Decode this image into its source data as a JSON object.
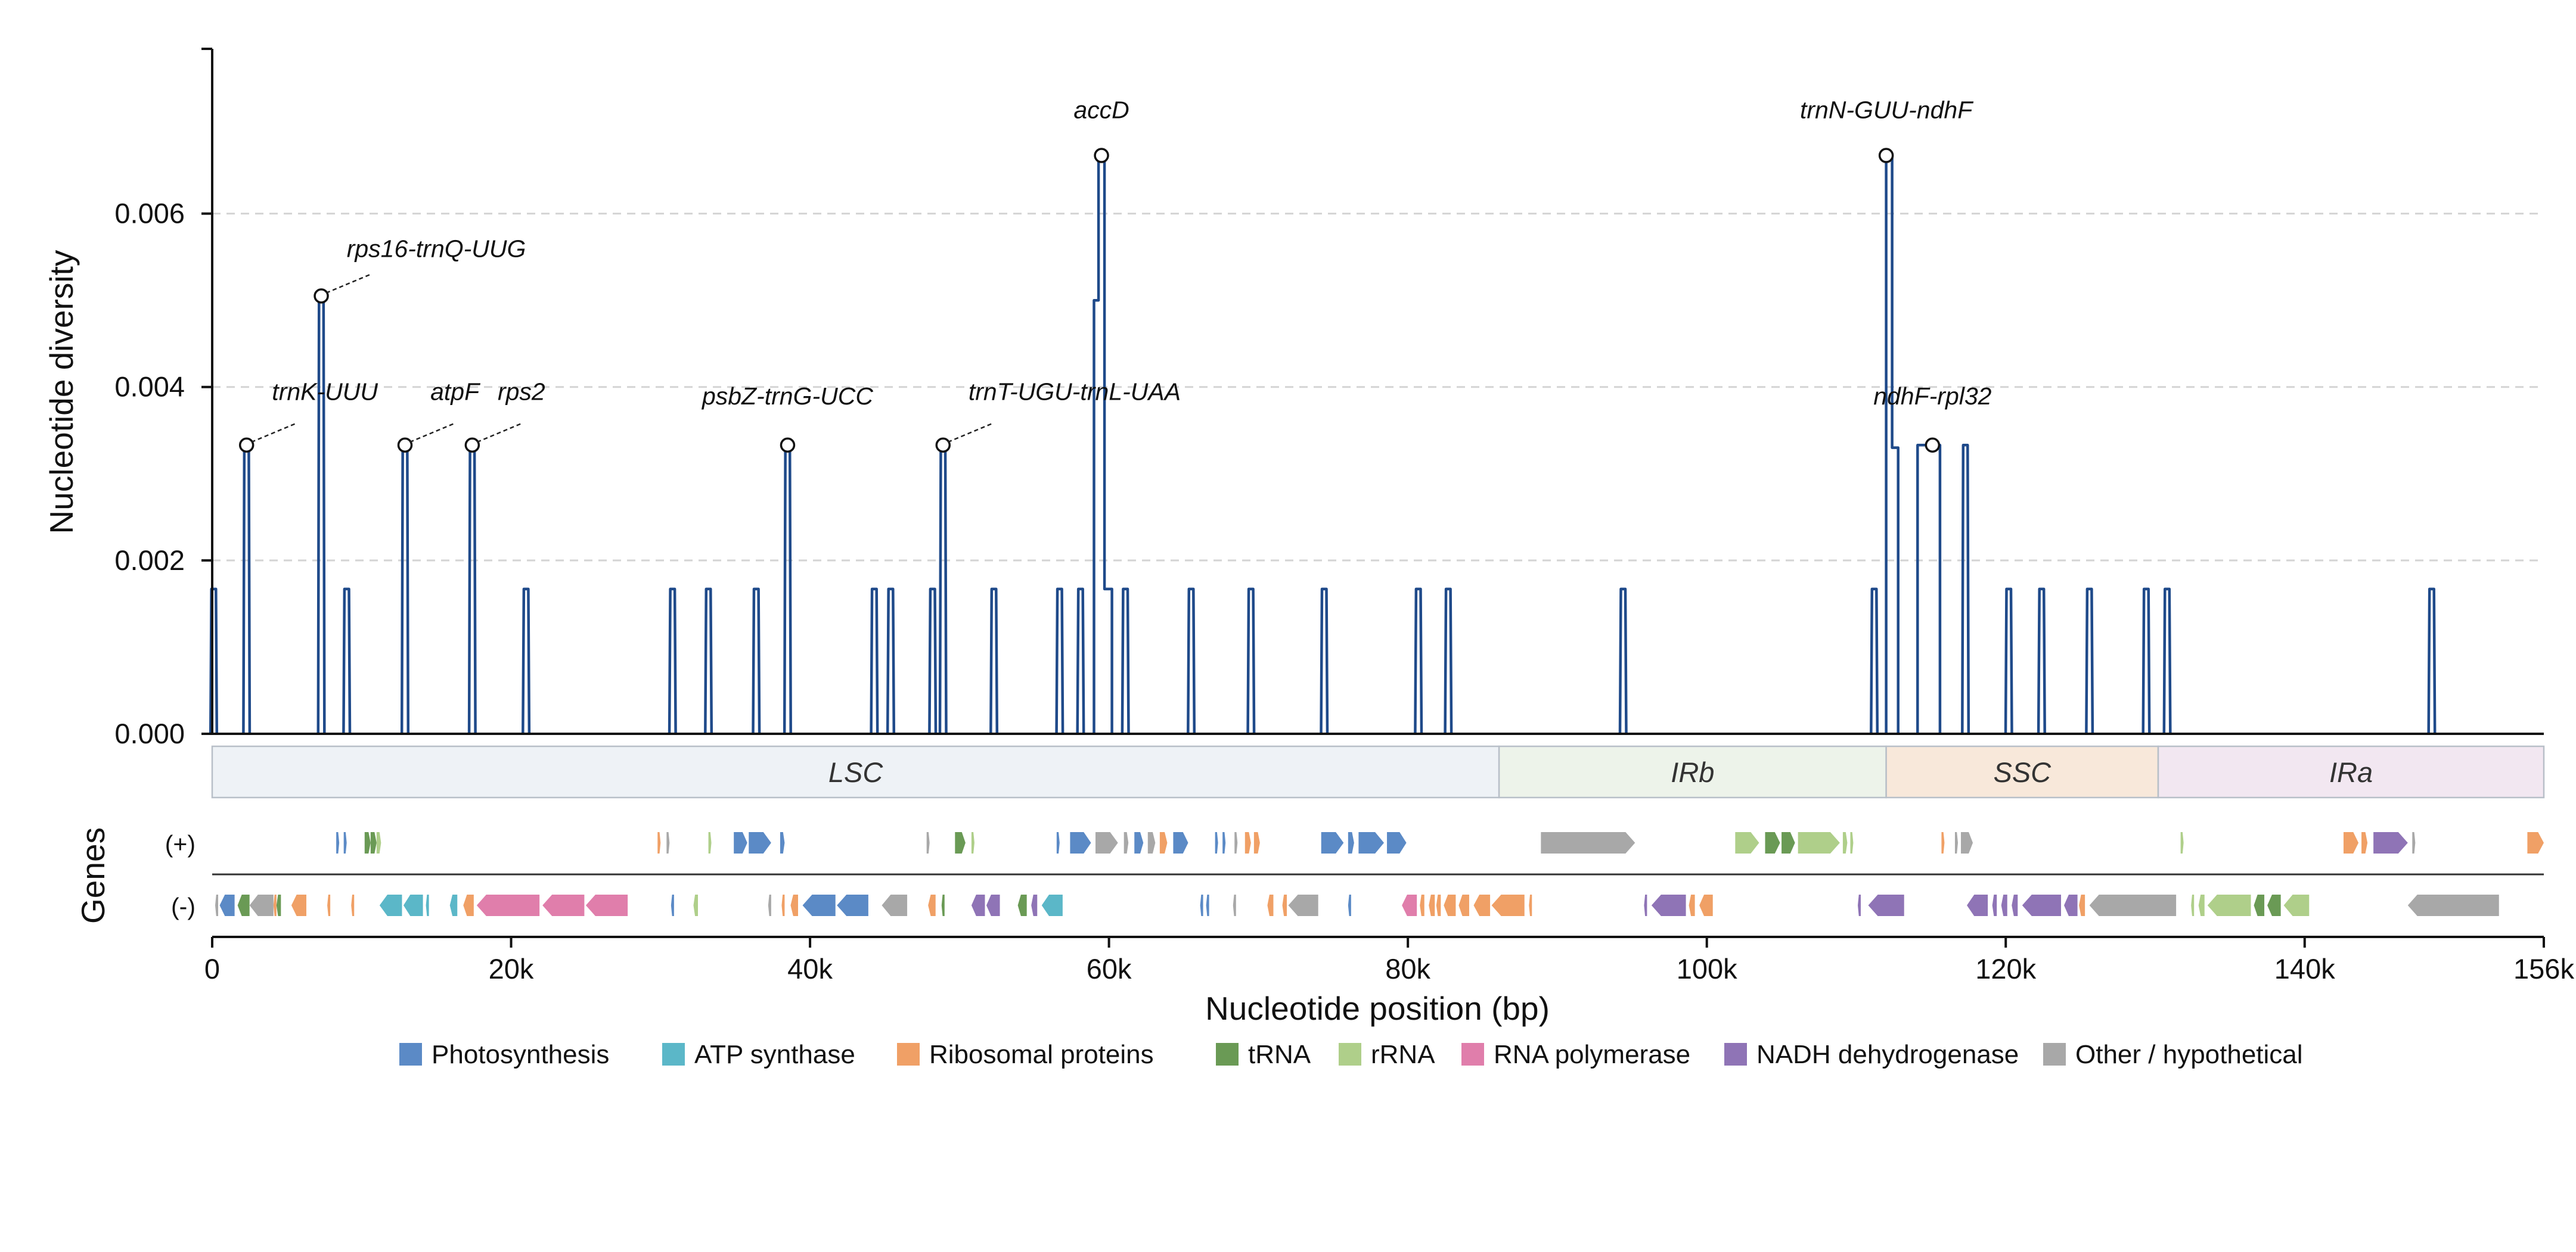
{
  "chart_data": {
    "type": "line",
    "xlabel": "Nucleotide position (bp)",
    "ylabel": "Nucleotide diversity",
    "genes_label": "Genes",
    "xlim": [
      0,
      156000
    ],
    "ylim": [
      0,
      0.0079
    ],
    "x_ticks": [
      0,
      20000,
      40000,
      60000,
      80000,
      100000,
      120000,
      140000,
      156000
    ],
    "x_tick_labels": [
      "0",
      "20k",
      "40k",
      "60k",
      "80k",
      "100k",
      "120k",
      "140k",
      "156k"
    ],
    "y_ticks": [
      0,
      0.002,
      0.004,
      0.006
    ],
    "y_tick_labels": [
      "0.000",
      "0.002",
      "0.004",
      "0.006"
    ],
    "grid": "horizontal-dashed",
    "line_color": "#1f4a8a",
    "series_peaks": [
      {
        "x": 100,
        "y": 0.00167
      },
      {
        "x": 2300,
        "y": 0.00333
      },
      {
        "x": 7300,
        "y": 0.00505
      },
      {
        "x": 9000,
        "y": 0.00167
      },
      {
        "x": 12900,
        "y": 0.00333
      },
      {
        "x": 17400,
        "y": 0.00333
      },
      {
        "x": 21000,
        "y": 0.00167
      },
      {
        "x": 30800,
        "y": 0.00167
      },
      {
        "x": 33200,
        "y": 0.00167
      },
      {
        "x": 36400,
        "y": 0.00167
      },
      {
        "x": 38500,
        "y": 0.00333
      },
      {
        "x": 44300,
        "y": 0.00167
      },
      {
        "x": 45400,
        "y": 0.00167
      },
      {
        "x": 48200,
        "y": 0.00167
      },
      {
        "x": 48900,
        "y": 0.00333
      },
      {
        "x": 52300,
        "y": 0.00167
      },
      {
        "x": 56700,
        "y": 0.00167
      },
      {
        "x": 58100,
        "y": 0.00167
      },
      {
        "x": 61100,
        "y": 0.00167
      },
      {
        "x": 65500,
        "y": 0.00167
      },
      {
        "x": 69500,
        "y": 0.00167
      },
      {
        "x": 74400,
        "y": 0.00167
      },
      {
        "x": 80700,
        "y": 0.00167
      },
      {
        "x": 82700,
        "y": 0.00167
      },
      {
        "x": 94400,
        "y": 0.00167
      },
      {
        "x": 111200,
        "y": 0.00167
      },
      {
        "x": 117300,
        "y": 0.00333
      },
      {
        "x": 120200,
        "y": 0.00167
      },
      {
        "x": 122400,
        "y": 0.00167
      },
      {
        "x": 125600,
        "y": 0.00167
      },
      {
        "x": 129400,
        "y": 0.00167
      },
      {
        "x": 130800,
        "y": 0.00167
      },
      {
        "x": 148500,
        "y": 0.00167
      }
    ],
    "series_complex": [
      [
        [
          59000,
          0
        ],
        [
          59000,
          0.005
        ],
        [
          59300,
          0.005
        ],
        [
          59300,
          0.00667
        ],
        [
          59700,
          0.00667
        ],
        [
          59700,
          0.00167
        ],
        [
          60200,
          0.00167
        ],
        [
          60200,
          0
        ]
      ],
      [
        [
          112000,
          0
        ],
        [
          112000,
          0.00667
        ],
        [
          112400,
          0.00667
        ],
        [
          112400,
          0.0033
        ],
        [
          112800,
          0.0033
        ],
        [
          112800,
          0
        ]
      ],
      [
        [
          114100,
          0
        ],
        [
          114100,
          0.00333
        ],
        [
          115600,
          0.00333
        ],
        [
          115600,
          0
        ]
      ]
    ],
    "annotations": [
      {
        "label": "trnK-UUU",
        "x": 2300,
        "y": 0.00333,
        "text_x": 4000,
        "text_y": 0.00385,
        "leader": true
      },
      {
        "label": "rps16-trnQ-UUG",
        "x": 7300,
        "y": 0.00505,
        "text_x": 9000,
        "text_y": 0.0055,
        "leader": true
      },
      {
        "label": "atpF",
        "x": 12900,
        "y": 0.00333,
        "text_x": 14600,
        "text_y": 0.00385,
        "leader": true
      },
      {
        "label": "rps2",
        "x": 17400,
        "y": 0.00333,
        "text_x": 19100,
        "text_y": 0.00385,
        "leader": true
      },
      {
        "label": "psbZ-trnG-UCC",
        "x": 38500,
        "y": 0.00333,
        "text_x": 38500,
        "text_y": 0.0038,
        "leader": false
      },
      {
        "label": "trnT-UGU-trnL-UAA",
        "x": 48900,
        "y": 0.00333,
        "text_x": 50600,
        "text_y": 0.00385,
        "leader": true
      },
      {
        "label": "accD",
        "x": 59500,
        "y": 0.00667,
        "text_x": 59500,
        "text_y": 0.0071,
        "leader": false
      },
      {
        "label": "trnN-GUU-ndhF",
        "x": 112000,
        "y": 0.00667,
        "text_x": 112000,
        "text_y": 0.0071,
        "leader": false
      },
      {
        "label": "ndhF-rpl32",
        "x": 115100,
        "y": 0.00333,
        "text_x": 115100,
        "text_y": 0.0038,
        "leader": false
      }
    ],
    "regions": [
      {
        "label": "LSC",
        "start": 0,
        "end": 86100,
        "color": "#eef2f6"
      },
      {
        "label": "IRb",
        "start": 86100,
        "end": 112000,
        "color": "#edf3ea"
      },
      {
        "label": "SSC",
        "start": 112000,
        "end": 130200,
        "color": "#f8e8da"
      },
      {
        "label": "IRa",
        "start": 130200,
        "end": 156000,
        "color": "#f2e7f1"
      }
    ],
    "strand_labels": [
      "(+)",
      "(-)"
    ],
    "gene_categories": [
      {
        "key": "photo",
        "name": "Photosynthesis",
        "color": "#5b8ac6"
      },
      {
        "key": "atp",
        "name": "ATP synthase",
        "color": "#5bb7c8"
      },
      {
        "key": "ribo",
        "name": "Ribosomal proteins",
        "color": "#f0a066"
      },
      {
        "key": "trna",
        "name": "tRNA",
        "color": "#6a9a55"
      },
      {
        "key": "rrna",
        "name": "rRNA",
        "color": "#afcf8a"
      },
      {
        "key": "rnap",
        "name": "RNA polymerase",
        "color": "#e07eab"
      },
      {
        "key": "ndh",
        "name": "NADH dehydrogenase",
        "color": "#8f74b6"
      },
      {
        "key": "other",
        "name": "Other / hypothetical",
        "color": "#a8a8a8"
      }
    ],
    "genes_plus": [
      [
        8300,
        8500,
        "photo"
      ],
      [
        8800,
        9000,
        "photo"
      ],
      [
        10200,
        10600,
        "trna"
      ],
      [
        10600,
        11000,
        "trna"
      ],
      [
        11000,
        11300,
        "rrna"
      ],
      [
        29800,
        30000,
        "ribo"
      ],
      [
        30400,
        30600,
        "other"
      ],
      [
        33200,
        33400,
        "rrna"
      ],
      [
        34900,
        35800,
        "photo"
      ],
      [
        35900,
        37400,
        "photo"
      ],
      [
        38000,
        38300,
        "photo"
      ],
      [
        47800,
        48000,
        "other"
      ],
      [
        49700,
        50400,
        "trna"
      ],
      [
        50800,
        51000,
        "rrna"
      ],
      [
        56500,
        56700,
        "photo"
      ],
      [
        57400,
        58800,
        "photo"
      ],
      [
        59100,
        60600,
        "other"
      ],
      [
        61000,
        61300,
        "other"
      ],
      [
        61700,
        62300,
        "photo"
      ],
      [
        62600,
        63100,
        "other"
      ],
      [
        63400,
        63900,
        "ribo"
      ],
      [
        64300,
        65300,
        "photo"
      ],
      [
        67100,
        67300,
        "photo"
      ],
      [
        67600,
        67800,
        "photo"
      ],
      [
        68400,
        68600,
        "other"
      ],
      [
        69100,
        69500,
        "ribo"
      ],
      [
        69700,
        70100,
        "ribo"
      ],
      [
        74200,
        75700,
        "photo"
      ],
      [
        76000,
        76400,
        "photo"
      ],
      [
        76700,
        78400,
        "photo"
      ],
      [
        78600,
        79900,
        "photo"
      ],
      [
        88900,
        95200,
        "other"
      ],
      [
        101900,
        103500,
        "rrna"
      ],
      [
        103900,
        104900,
        "trna"
      ],
      [
        105000,
        105900,
        "trna"
      ],
      [
        106100,
        108900,
        "rrna"
      ],
      [
        109100,
        109400,
        "rrna"
      ],
      [
        109600,
        109800,
        "rrna"
      ],
      [
        115700,
        115900,
        "ribo"
      ],
      [
        116600,
        116800,
        "other"
      ],
      [
        117000,
        117800,
        "other"
      ],
      [
        131700,
        131900,
        "rrna"
      ],
      [
        142600,
        143600,
        "ribo"
      ],
      [
        143800,
        144200,
        "ribo"
      ],
      [
        144600,
        146900,
        "ndh"
      ],
      [
        147200,
        147400,
        "other"
      ],
      [
        154900,
        156000,
        "ribo"
      ]
    ],
    "genes_minus": [
      [
        200,
        400,
        "other"
      ],
      [
        500,
        1500,
        "photo"
      ],
      [
        1700,
        2500,
        "trna"
      ],
      [
        2500,
        4100,
        "other"
      ],
      [
        4100,
        4300,
        "ribo"
      ],
      [
        4300,
        4600,
        "trna"
      ],
      [
        5300,
        6300,
        "ribo"
      ],
      [
        7700,
        7900,
        "ribo"
      ],
      [
        9300,
        9500,
        "ribo"
      ],
      [
        11200,
        12700,
        "atp"
      ],
      [
        12800,
        14100,
        "atp"
      ],
      [
        14300,
        14500,
        "atp"
      ],
      [
        15900,
        16400,
        "atp"
      ],
      [
        16800,
        17500,
        "ribo"
      ],
      [
        17700,
        21900,
        "rnap"
      ],
      [
        22100,
        24900,
        "rnap"
      ],
      [
        25000,
        27800,
        "rnap"
      ],
      [
        30700,
        30900,
        "photo"
      ],
      [
        32200,
        32500,
        "rrna"
      ],
      [
        37200,
        37400,
        "other"
      ],
      [
        38100,
        38300,
        "ribo"
      ],
      [
        38700,
        39200,
        "ribo"
      ],
      [
        39500,
        41700,
        "photo"
      ],
      [
        41800,
        43900,
        "photo"
      ],
      [
        44800,
        46500,
        "other"
      ],
      [
        47900,
        48400,
        "ribo"
      ],
      [
        48800,
        49000,
        "trna"
      ],
      [
        50800,
        51700,
        "ndh"
      ],
      [
        51800,
        52700,
        "ndh"
      ],
      [
        53900,
        54500,
        "trna"
      ],
      [
        54800,
        55200,
        "ndh"
      ],
      [
        55500,
        56900,
        "atp"
      ],
      [
        66100,
        66300,
        "photo"
      ],
      [
        66500,
        66700,
        "photo"
      ],
      [
        68300,
        68500,
        "other"
      ],
      [
        70600,
        71000,
        "ribo"
      ],
      [
        71600,
        71900,
        "ribo"
      ],
      [
        72000,
        74000,
        "other"
      ],
      [
        76000,
        76200,
        "photo"
      ],
      [
        79600,
        80600,
        "rnap"
      ],
      [
        80800,
        81100,
        "ribo"
      ],
      [
        81400,
        81800,
        "ribo"
      ],
      [
        81900,
        82200,
        "ribo"
      ],
      [
        82400,
        83200,
        "ribo"
      ],
      [
        83400,
        84100,
        "ribo"
      ],
      [
        84400,
        85500,
        "ribo"
      ],
      [
        85600,
        87800,
        "ribo"
      ],
      [
        88100,
        88300,
        "ribo"
      ],
      [
        95800,
        96000,
        "ndh"
      ],
      [
        96300,
        98600,
        "ndh"
      ],
      [
        98800,
        99200,
        "ribo"
      ],
      [
        99500,
        100400,
        "ribo"
      ],
      [
        110100,
        110300,
        "ndh"
      ],
      [
        110800,
        113200,
        "ndh"
      ],
      [
        117400,
        118800,
        "ndh"
      ],
      [
        119100,
        119400,
        "ndh"
      ],
      [
        119700,
        120100,
        "ndh"
      ],
      [
        120400,
        120800,
        "ndh"
      ],
      [
        121100,
        123700,
        "ndh"
      ],
      [
        123900,
        124800,
        "ndh"
      ],
      [
        124900,
        125300,
        "ribo"
      ],
      [
        125600,
        131400,
        "other"
      ],
      [
        132400,
        132600,
        "rrna"
      ],
      [
        132900,
        133300,
        "rrna"
      ],
      [
        133500,
        136400,
        "rrna"
      ],
      [
        136600,
        137300,
        "trna"
      ],
      [
        137500,
        138400,
        "trna"
      ],
      [
        138600,
        140300,
        "rrna"
      ],
      [
        146900,
        153000,
        "other"
      ]
    ]
  }
}
